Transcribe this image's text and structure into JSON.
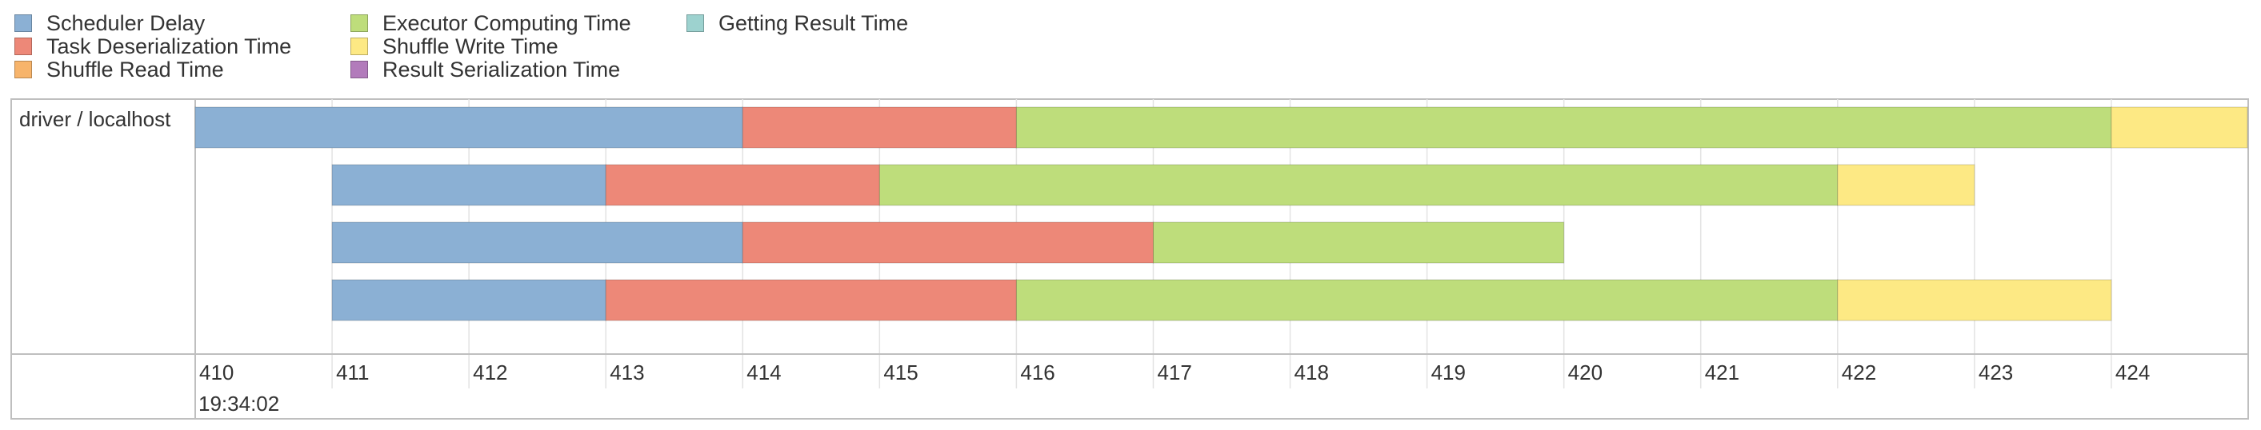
{
  "legend": {
    "items": [
      {
        "label": "Scheduler Delay",
        "color": "#8bb0d4"
      },
      {
        "label": "Task Deserialization Time",
        "color": "#ed8878"
      },
      {
        "label": "Shuffle Read Time",
        "color": "#f7b46b"
      },
      {
        "label": "Executor Computing Time",
        "color": "#bedd7b"
      },
      {
        "label": "Shuffle Write Time",
        "color": "#fde984"
      },
      {
        "label": "Result Serialization Time",
        "color": "#b27bbb"
      },
      {
        "label": "Getting Result Time",
        "color": "#9dd2cf"
      }
    ]
  },
  "timeline": {
    "group_label": "driver / localhost",
    "date_label": "19:34:02",
    "axis_ticks": [
      410,
      411,
      412,
      413,
      414,
      415,
      416,
      417,
      418,
      419,
      420,
      421,
      422,
      423,
      424
    ],
    "axis_range": [
      410,
      425
    ]
  },
  "chart_data": {
    "type": "bar",
    "orientation": "horizontal-stacked-timeline",
    "x_unit": "seconds (ms tick labels)",
    "xlim": [
      410,
      425
    ],
    "tasks": [
      {
        "segments": [
          {
            "phase": "Scheduler Delay",
            "start": 410,
            "end": 414
          },
          {
            "phase": "Task Deserialization Time",
            "start": 414,
            "end": 416
          },
          {
            "phase": "Executor Computing Time",
            "start": 416,
            "end": 424
          },
          {
            "phase": "Shuffle Write Time",
            "start": 424,
            "end": 425
          }
        ]
      },
      {
        "segments": [
          {
            "phase": "Scheduler Delay",
            "start": 411,
            "end": 413
          },
          {
            "phase": "Task Deserialization Time",
            "start": 413,
            "end": 415
          },
          {
            "phase": "Executor Computing Time",
            "start": 415,
            "end": 422
          },
          {
            "phase": "Shuffle Write Time",
            "start": 422,
            "end": 423
          }
        ]
      },
      {
        "segments": [
          {
            "phase": "Scheduler Delay",
            "start": 411,
            "end": 414
          },
          {
            "phase": "Task Deserialization Time",
            "start": 414,
            "end": 417
          },
          {
            "phase": "Executor Computing Time",
            "start": 417,
            "end": 420
          }
        ]
      },
      {
        "segments": [
          {
            "phase": "Scheduler Delay",
            "start": 411,
            "end": 413
          },
          {
            "phase": "Task Deserialization Time",
            "start": 413,
            "end": 416
          },
          {
            "phase": "Executor Computing Time",
            "start": 416,
            "end": 422
          },
          {
            "phase": "Shuffle Write Time",
            "start": 422,
            "end": 424
          }
        ]
      }
    ]
  }
}
